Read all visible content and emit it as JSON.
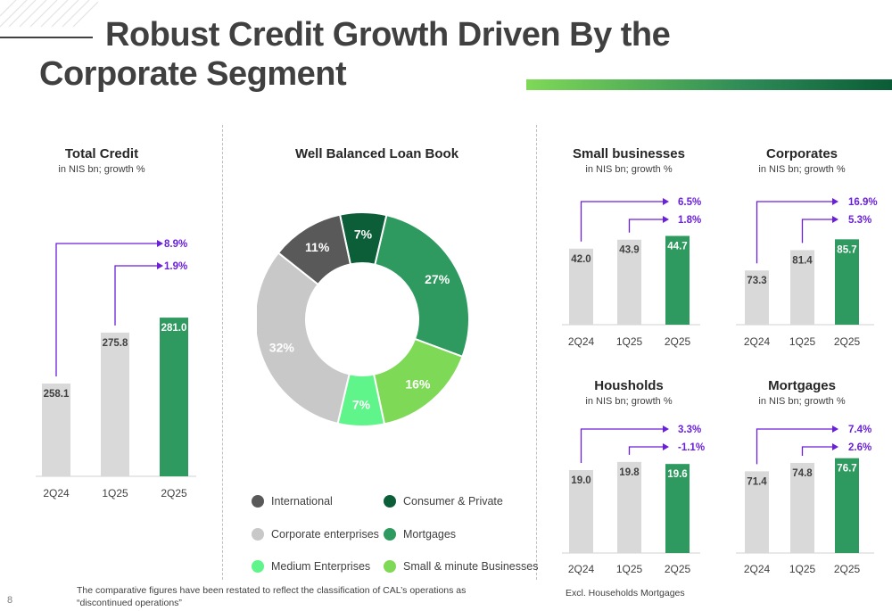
{
  "page": {
    "title_line1": "Robust Credit Growth Driven By the",
    "title_line2": "Corporate Segment",
    "page_number": "8",
    "footnote": "The comparative figures have been restated to reflect the classification of CAL’s operations as “discontinued operations”",
    "footnote_right": "Excl. Households Mortgages",
    "accent_gradient": [
      "#7ed957",
      "#2e8b57",
      "#0a5c36"
    ]
  },
  "colors": {
    "bar_grey": "#d9d9d9",
    "bar_green": "#2e9a5f",
    "arrow_purple": "#6a1fd8"
  },
  "chart_data": [
    {
      "id": "total-credit",
      "type": "bar",
      "title": "Total Credit",
      "subtitle": "in NIS bn; growth %",
      "categories": [
        "2Q24",
        "1Q25",
        "2Q25"
      ],
      "values": [
        258.1,
        275.8,
        281.0
      ],
      "labels": [
        "258.1",
        "275.8",
        "281.0"
      ],
      "growth": [
        "8.9%",
        "1.9%"
      ]
    },
    {
      "id": "loan-book",
      "type": "pie",
      "title": "Well Balanced Loan Book",
      "slices": [
        {
          "name": "Consumer & Private",
          "value": 7,
          "label": "7%",
          "color": "#0b5e38"
        },
        {
          "name": "Mortgages",
          "value": 27,
          "label": "27%",
          "color": "#2e9a5f"
        },
        {
          "name": "Small & minute Businesses",
          "value": 16,
          "label": "16%",
          "color": "#7ed957"
        },
        {
          "name": "Medium Enterprises",
          "value": 7,
          "label": "7%",
          "color": "#5ff58a"
        },
        {
          "name": "Corporate enterprises",
          "value": 32,
          "label": "32%",
          "color": "#c8c8c8"
        },
        {
          "name": "International",
          "value": 11,
          "label": "11%",
          "color": "#595959"
        }
      ],
      "legend": [
        {
          "name": "International",
          "color": "#595959"
        },
        {
          "name": "Consumer & Private",
          "color": "#0b5e38"
        },
        {
          "name": "Corporate enterprises",
          "color": "#c8c8c8"
        },
        {
          "name": "Mortgages",
          "color": "#2e9a5f"
        },
        {
          "name": "Medium Enterprises",
          "color": "#5ff58a"
        },
        {
          "name": "Small & minute Businesses",
          "color": "#7ed957"
        }
      ]
    },
    {
      "id": "small-businesses",
      "type": "bar",
      "title": "Small businesses",
      "subtitle": "in NIS bn; growth %",
      "categories": [
        "2Q24",
        "1Q25",
        "2Q25"
      ],
      "values": [
        42.0,
        43.9,
        44.7
      ],
      "labels": [
        "42.0",
        "43.9",
        "44.7"
      ],
      "growth": [
        "6.5%",
        "1.8%"
      ]
    },
    {
      "id": "corporates",
      "type": "bar",
      "title": "Corporates",
      "subtitle": "in NIS bn; growth %",
      "categories": [
        "2Q24",
        "1Q25",
        "2Q25"
      ],
      "values": [
        73.3,
        81.4,
        85.7
      ],
      "labels": [
        "73.3",
        "81.4",
        "85.7"
      ],
      "growth": [
        "16.9%",
        "5.3%"
      ]
    },
    {
      "id": "households",
      "type": "bar",
      "title": "Housholds",
      "subtitle": "in NIS bn; growth %",
      "categories": [
        "2Q24",
        "1Q25",
        "2Q25"
      ],
      "values": [
        19.0,
        19.8,
        19.6
      ],
      "labels": [
        "19.0",
        "19.8",
        "19.6"
      ],
      "growth": [
        "3.3%",
        "-1.1%"
      ]
    },
    {
      "id": "mortgages",
      "type": "bar",
      "title": "Mortgages",
      "subtitle": "in NIS bn; growth %",
      "categories": [
        "2Q24",
        "1Q25",
        "2Q25"
      ],
      "values": [
        71.4,
        74.8,
        76.7
      ],
      "labels": [
        "71.4",
        "74.8",
        "76.7"
      ],
      "growth": [
        "7.4%",
        "2.6%"
      ]
    }
  ]
}
